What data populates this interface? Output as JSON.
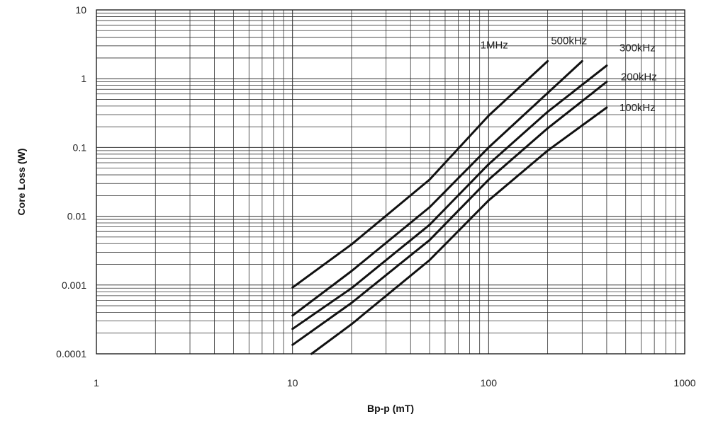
{
  "chart_data": {
    "type": "line",
    "xlabel": "Bp-p (mT)",
    "ylabel": "Core Loss (W)",
    "xscale": "log",
    "yscale": "log",
    "xlim": [
      1,
      1000
    ],
    "ylim": [
      0.0001,
      10
    ],
    "grid": true,
    "x_tick_labels": [
      "1",
      "10",
      "100",
      "1000"
    ],
    "y_tick_labels": [
      "0.0001",
      "0.001",
      "0.01",
      "0.1",
      "1",
      "10"
    ],
    "series": [
      {
        "name": "1MHz",
        "x": [
          10,
          20,
          50,
          100,
          200
        ],
        "y": [
          0.00092,
          0.0039,
          0.034,
          0.29,
          1.8
        ]
      },
      {
        "name": "500kHz",
        "x": [
          10,
          20,
          50,
          100,
          200,
          300
        ],
        "y": [
          0.00036,
          0.0016,
          0.0135,
          0.1,
          0.62,
          1.8
        ]
      },
      {
        "name": "300kHz",
        "x": [
          10,
          20,
          50,
          100,
          200,
          400
        ],
        "y": [
          0.00023,
          0.0009,
          0.0075,
          0.057,
          0.33,
          1.55
        ]
      },
      {
        "name": "200kHz",
        "x": [
          10,
          20,
          50,
          100,
          200,
          400
        ],
        "y": [
          0.000135,
          0.00055,
          0.0045,
          0.034,
          0.19,
          0.9
        ]
      },
      {
        "name": "100kHz",
        "x": [
          12.5,
          20,
          50,
          100,
          200,
          400
        ],
        "y": [
          0.0001,
          0.00027,
          0.0023,
          0.017,
          0.09,
          0.38
        ]
      }
    ]
  }
}
